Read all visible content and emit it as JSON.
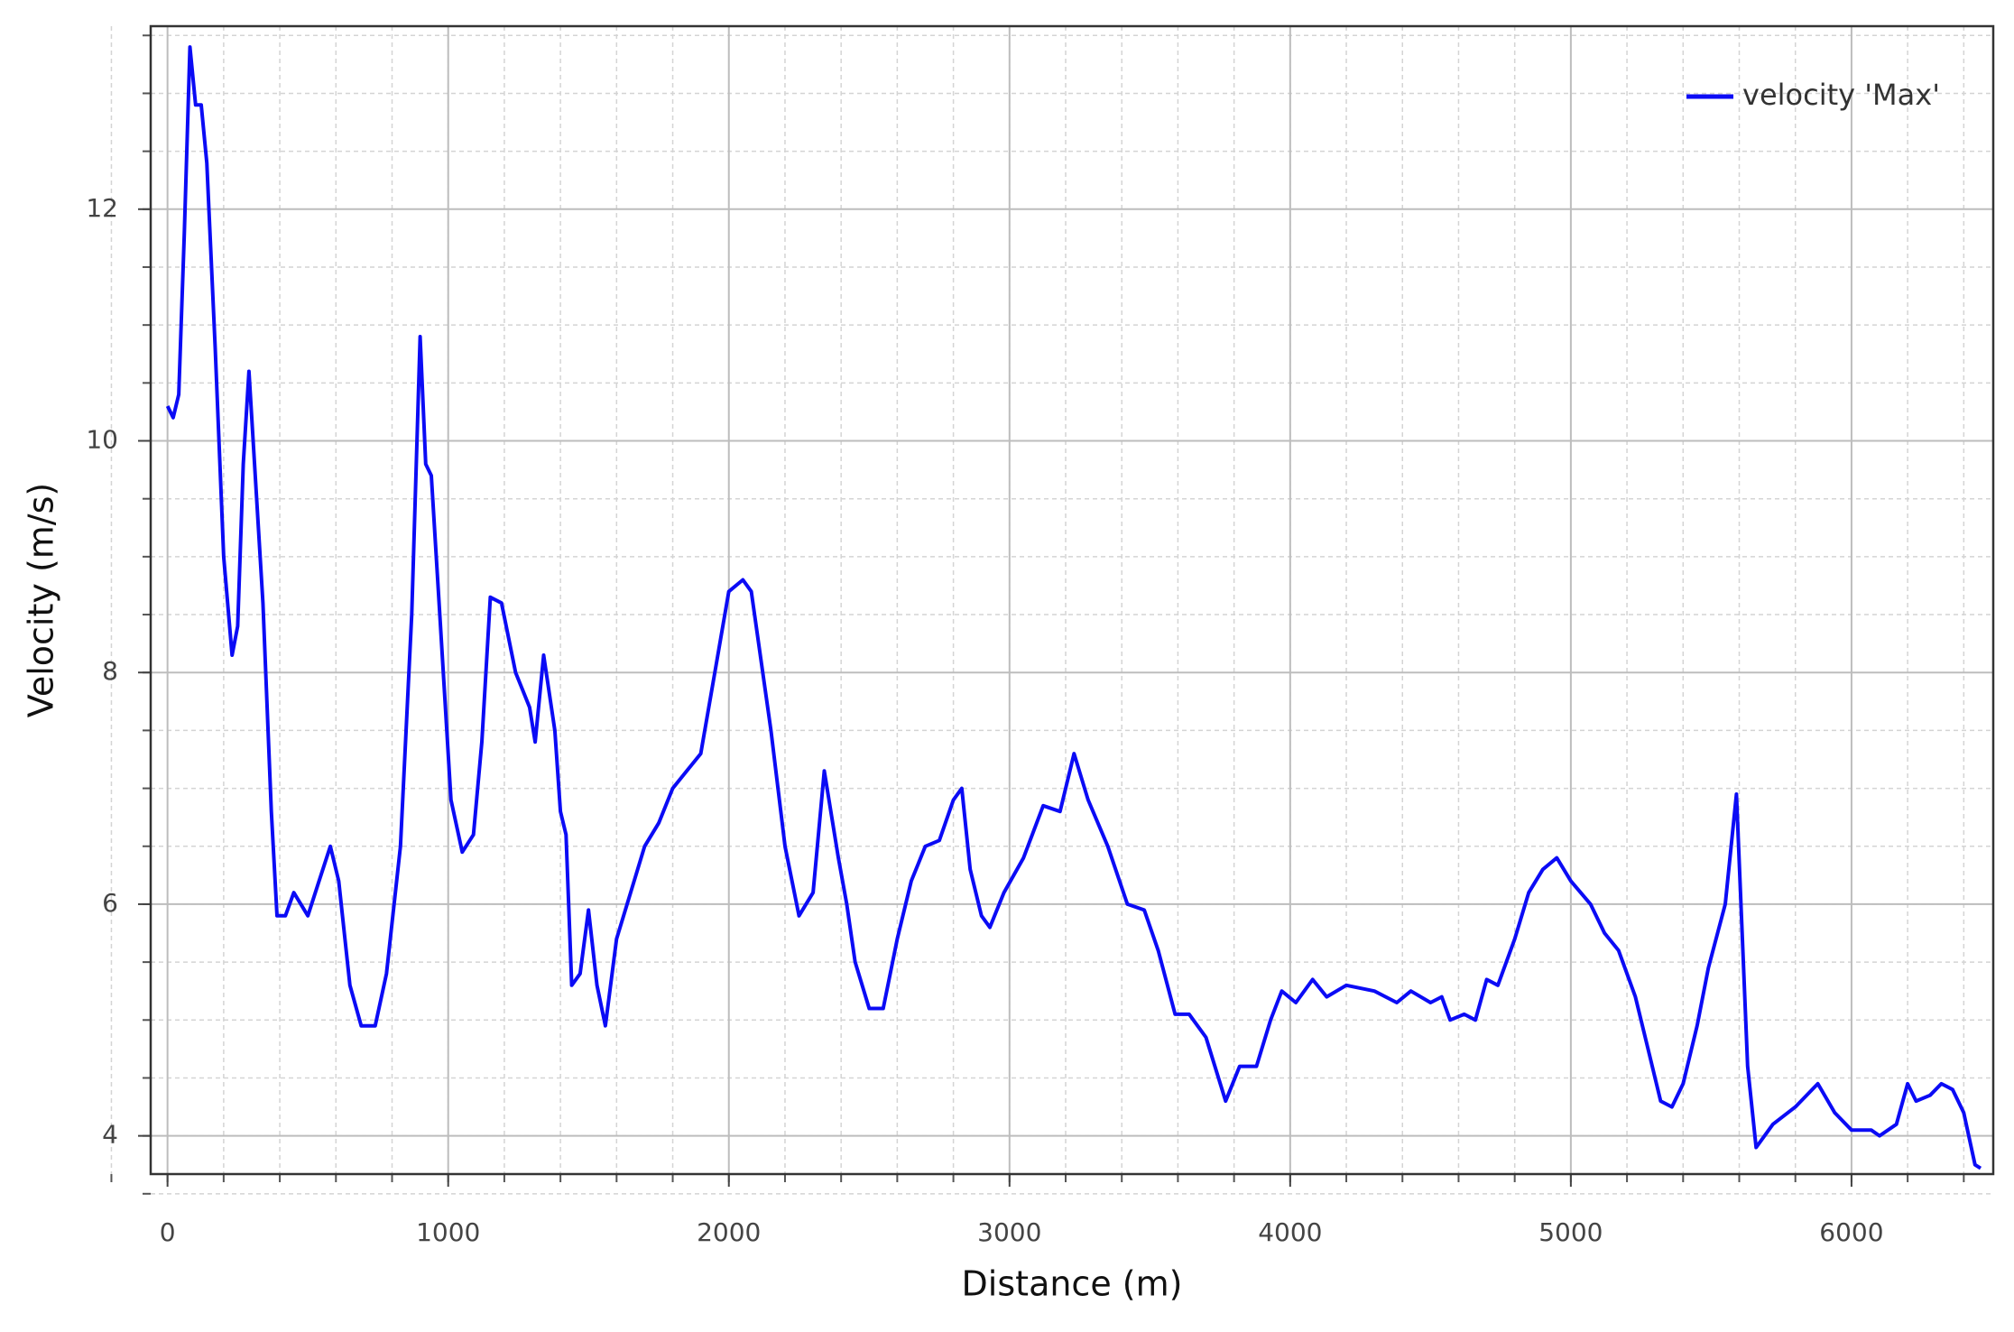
{
  "chart_data": {
    "type": "line",
    "x_label": "Distance (m)",
    "y_label": "Velocity (m/s)",
    "xlim": [
      -60,
      6505
    ],
    "ylim": [
      3.67,
      13.58
    ],
    "xticks": [
      0,
      1000,
      2000,
      3000,
      4000,
      5000,
      6000
    ],
    "yticks": [
      4,
      6,
      8,
      10,
      12
    ],
    "grid": true,
    "legend": "upper right",
    "x": [
      0,
      20,
      40,
      60,
      80,
      100,
      120,
      140,
      170,
      200,
      230,
      250,
      270,
      290,
      310,
      340,
      370,
      390,
      420,
      450,
      500,
      540,
      580,
      610,
      650,
      690,
      740,
      780,
      830,
      870,
      900,
      920,
      940,
      970,
      1010,
      1050,
      1090,
      1120,
      1150,
      1190,
      1240,
      1290,
      1310,
      1340,
      1380,
      1400,
      1420,
      1440,
      1470,
      1500,
      1530,
      1560,
      1600,
      1650,
      1700,
      1750,
      1800,
      1850,
      1900,
      1950,
      2000,
      2050,
      2080,
      2150,
      2200,
      2250,
      2300,
      2340,
      2390,
      2420,
      2450,
      2500,
      2550,
      2600,
      2650,
      2700,
      2750,
      2800,
      2830,
      2860,
      2900,
      2930,
      2980,
      3050,
      3120,
      3180,
      3230,
      3280,
      3350,
      3420,
      3480,
      3530,
      3590,
      3640,
      3700,
      3770,
      3820,
      3880,
      3930,
      3970,
      4020,
      4080,
      4130,
      4200,
      4300,
      4380,
      4430,
      4500,
      4540,
      4570,
      4620,
      4660,
      4700,
      4740,
      4800,
      4850,
      4900,
      4950,
      5000,
      5070,
      5120,
      5170,
      5230,
      5280,
      5320,
      5360,
      5400,
      5450,
      5490,
      5550,
      5590,
      5630,
      5660,
      5720,
      5800,
      5880,
      5940,
      6000,
      6070,
      6100,
      6160,
      6200,
      6230,
      6280,
      6320,
      6360,
      6400,
      6440,
      6460
    ],
    "series": [
      {
        "name": "velocity 'Max'",
        "color": "#0b0bf5",
        "values": [
          10.3,
          10.2,
          10.4,
          11.8,
          13.4,
          12.9,
          12.9,
          12.4,
          10.8,
          9.0,
          8.15,
          8.4,
          9.8,
          10.6,
          9.8,
          8.6,
          6.8,
          5.9,
          5.9,
          6.1,
          5.9,
          6.2,
          6.5,
          6.2,
          5.3,
          4.95,
          4.95,
          5.4,
          6.5,
          8.5,
          10.9,
          9.8,
          9.7,
          8.5,
          6.9,
          6.45,
          6.6,
          7.4,
          8.65,
          8.6,
          8.0,
          7.7,
          7.4,
          8.15,
          7.5,
          6.8,
          6.6,
          5.3,
          5.4,
          5.95,
          5.3,
          4.95,
          5.7,
          6.1,
          6.5,
          6.7,
          7.0,
          7.15,
          7.3,
          8.0,
          8.7,
          8.8,
          8.7,
          7.5,
          6.5,
          5.9,
          6.1,
          7.15,
          6.4,
          6.0,
          5.5,
          5.1,
          5.1,
          5.7,
          6.2,
          6.5,
          6.55,
          6.9,
          7.0,
          6.3,
          5.9,
          5.8,
          6.1,
          6.4,
          6.85,
          6.8,
          7.3,
          6.9,
          6.5,
          6.0,
          5.95,
          5.6,
          5.05,
          5.05,
          4.85,
          4.3,
          4.6,
          4.6,
          5.0,
          5.25,
          5.15,
          5.35,
          5.2,
          5.3,
          5.25,
          5.15,
          5.25,
          5.15,
          5.2,
          5.0,
          5.05,
          5.0,
          5.35,
          5.3,
          5.7,
          6.1,
          6.3,
          6.4,
          6.2,
          6.0,
          5.75,
          5.6,
          5.2,
          4.7,
          4.3,
          4.25,
          4.45,
          4.95,
          5.45,
          6.0,
          6.95,
          4.6,
          3.9,
          4.1,
          4.25,
          4.45,
          4.2,
          4.05,
          4.05,
          4.0,
          4.1,
          4.45,
          4.3,
          4.35,
          4.45,
          4.4,
          4.2,
          3.75,
          3.72
        ]
      }
    ]
  }
}
